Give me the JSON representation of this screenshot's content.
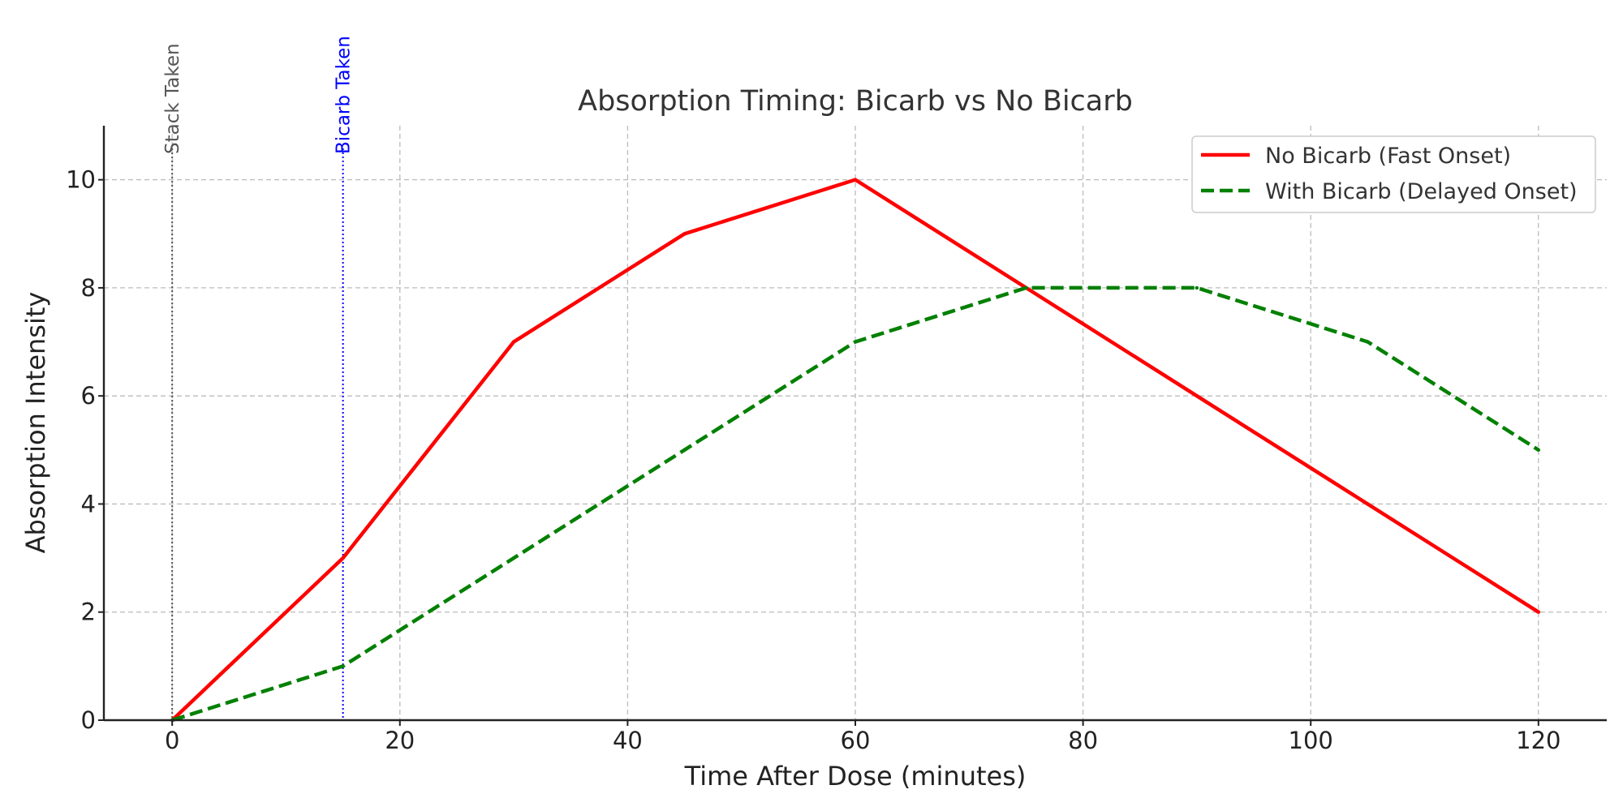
{
  "chart_data": {
    "type": "line",
    "title": "Absorption Timing: Bicarb vs No Bicarb",
    "xlabel": "Time After Dose (minutes)",
    "ylabel": "Absorption Intensity",
    "xlim": [
      -6,
      126
    ],
    "ylim": [
      0,
      11
    ],
    "xticks": [
      0,
      20,
      40,
      60,
      80,
      100,
      120
    ],
    "yticks": [
      0,
      2,
      4,
      6,
      8,
      10
    ],
    "grid": true,
    "legend_position": "top-right",
    "series": [
      {
        "name": "No Bicarb (Fast Onset)",
        "color": "#ff0000",
        "line_style": "solid",
        "x": [
          0,
          15,
          30,
          45,
          60,
          75,
          90,
          105,
          120
        ],
        "y": [
          0,
          3,
          7,
          9,
          10,
          8,
          6,
          4,
          2
        ]
      },
      {
        "name": "With Bicarb (Delayed Onset)",
        "color": "#008000",
        "line_style": "dashed",
        "x": [
          0,
          15,
          30,
          45,
          60,
          75,
          90,
          105,
          120
        ],
        "y": [
          0,
          1,
          3,
          5,
          7,
          8,
          8,
          7,
          5
        ]
      }
    ],
    "annotations": [
      {
        "label": "Stack Taken",
        "x": 0,
        "color": "#555555",
        "style": "dotted"
      },
      {
        "label": "Bicarb Taken",
        "x": 15,
        "color": "#0000ff",
        "style": "dotted"
      }
    ]
  }
}
